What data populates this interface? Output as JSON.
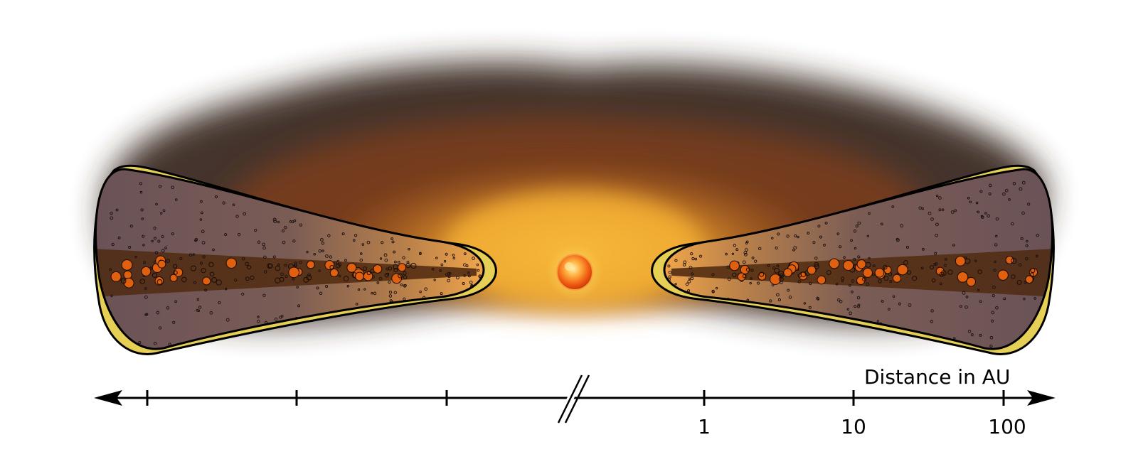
{
  "axis": {
    "title": "Distance in AU",
    "tick_labels": [
      "1",
      "10",
      "100"
    ]
  },
  "colors": {
    "disk_fill": "#6e5458",
    "midplane": "#5a3214",
    "surface_layer": "#e6cf55",
    "grain": "#e06010",
    "cloud_dark": "#3a2a22",
    "cloud_warm": "#f2a830",
    "star": "#f07a1a"
  },
  "icons": [
    "central-star",
    "dust-envelope",
    "protoplanetary-disk",
    "axis-break"
  ]
}
